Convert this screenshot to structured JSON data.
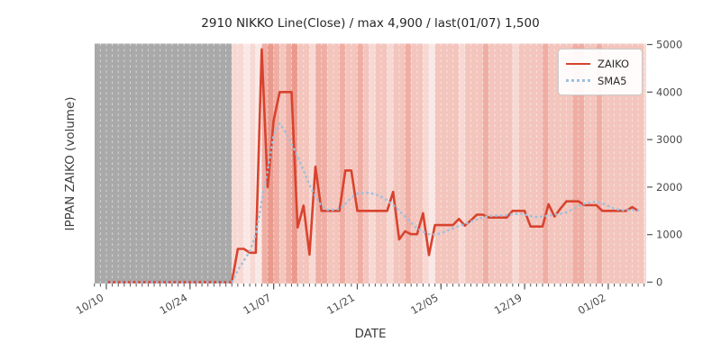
{
  "title": "2910 NIKKO Line(Close) / max 4,900 / last(01/07) 1,500",
  "axes": {
    "x_label": "DATE",
    "y_label": "IPPAN ZAIKO (volume)",
    "x_tick_labels": [
      "10/10",
      "10/24",
      "11/07",
      "11/21",
      "12/05",
      "12/19",
      "01/02"
    ],
    "y_tick_labels": [
      "0",
      "1000",
      "2000",
      "3000",
      "4000",
      "5000"
    ]
  },
  "legend": {
    "items": [
      {
        "label": "ZAIKO",
        "color": "#d8432e",
        "style": "solid"
      },
      {
        "label": "SMA5",
        "color": "#9fc0dd",
        "style": "dotted"
      }
    ]
  },
  "colors": {
    "zaiko_line": "#d8432e",
    "sma5_line": "#9fc0dd",
    "no_data_region": "#a9a9a9",
    "gridline": "rgba(255,255,255,0.55)",
    "tick": "#555555",
    "tick_label": "#4a4a4a",
    "band_levels": {
      "0": "#f9e9e6",
      "1": "#f7d9d4",
      "2": "#f3c5bd",
      "3": "#efaea4",
      "4": "#ea998d"
    }
  },
  "chart_data": {
    "type": "line",
    "title": "2910 NIKKO Line(Close) / max 4,900 / last(01/07) 1,500",
    "xlabel": "DATE",
    "ylabel": "IPPAN ZAIKO (volume)",
    "ylim": [
      0,
      5000
    ],
    "x_ticks": [
      "10/10",
      "10/24",
      "11/07",
      "11/21",
      "12/05",
      "12/19",
      "01/02"
    ],
    "y_ticks": [
      0,
      1000,
      2000,
      3000,
      4000,
      5000
    ],
    "max_value": 4900,
    "last_date": "01/07",
    "last_value": 1500,
    "legend_position": "upper right",
    "grid": "vertical-daily-dashed-white",
    "no_data_region": {
      "from": "10/08",
      "to": "10/31"
    },
    "series": [
      {
        "name": "ZAIKO",
        "points": [
          [
            "10/10",
            0
          ],
          [
            "10/11",
            0
          ],
          [
            "10/12",
            0
          ],
          [
            "10/13",
            0
          ],
          [
            "10/14",
            0
          ],
          [
            "10/15",
            0
          ],
          [
            "10/16",
            0
          ],
          [
            "10/17",
            0
          ],
          [
            "10/18",
            0
          ],
          [
            "10/19",
            0
          ],
          [
            "10/20",
            0
          ],
          [
            "10/21",
            0
          ],
          [
            "10/22",
            0
          ],
          [
            "10/23",
            0
          ],
          [
            "10/24",
            0
          ],
          [
            "10/25",
            0
          ],
          [
            "10/26",
            0
          ],
          [
            "10/27",
            0
          ],
          [
            "10/28",
            0
          ],
          [
            "10/29",
            0
          ],
          [
            "10/30",
            0
          ],
          [
            "10/31",
            0
          ],
          [
            "11/01",
            700
          ],
          [
            "11/02",
            700
          ],
          [
            "11/03",
            620
          ],
          [
            "11/04",
            620
          ],
          [
            "11/05",
            4900
          ],
          [
            "11/06",
            2000
          ],
          [
            "11/07",
            3400
          ],
          [
            "11/08",
            4000
          ],
          [
            "11/09",
            4000
          ],
          [
            "11/10",
            4000
          ],
          [
            "11/11",
            1150
          ],
          [
            "11/12",
            1610
          ],
          [
            "11/13",
            580
          ],
          [
            "11/14",
            2430
          ],
          [
            "11/15",
            1500
          ],
          [
            "11/16",
            1500
          ],
          [
            "11/17",
            1500
          ],
          [
            "11/18",
            1500
          ],
          [
            "11/19",
            2350
          ],
          [
            "11/20",
            2350
          ],
          [
            "11/21",
            1500
          ],
          [
            "11/22",
            1500
          ],
          [
            "11/23",
            1500
          ],
          [
            "11/24",
            1500
          ],
          [
            "11/25",
            1500
          ],
          [
            "11/26",
            1500
          ],
          [
            "11/27",
            1900
          ],
          [
            "11/28",
            900
          ],
          [
            "11/29",
            1070
          ],
          [
            "11/30",
            1010
          ],
          [
            "12/01",
            1010
          ],
          [
            "12/02",
            1450
          ],
          [
            "12/03",
            570
          ],
          [
            "12/04",
            1200
          ],
          [
            "12/05",
            1200
          ],
          [
            "12/06",
            1200
          ],
          [
            "12/07",
            1200
          ],
          [
            "12/08",
            1330
          ],
          [
            "12/09",
            1190
          ],
          [
            "12/10",
            1300
          ],
          [
            "12/11",
            1420
          ],
          [
            "12/12",
            1420
          ],
          [
            "12/13",
            1360
          ],
          [
            "12/14",
            1360
          ],
          [
            "12/15",
            1360
          ],
          [
            "12/16",
            1360
          ],
          [
            "12/17",
            1500
          ],
          [
            "12/18",
            1500
          ],
          [
            "12/19",
            1500
          ],
          [
            "12/20",
            1170
          ],
          [
            "12/21",
            1170
          ],
          [
            "12/22",
            1170
          ],
          [
            "12/23",
            1640
          ],
          [
            "12/24",
            1380
          ],
          [
            "12/25",
            1550
          ],
          [
            "12/26",
            1700
          ],
          [
            "12/27",
            1700
          ],
          [
            "12/28",
            1700
          ],
          [
            "12/29",
            1620
          ],
          [
            "12/30",
            1620
          ],
          [
            "12/31",
            1620
          ],
          [
            "01/01",
            1500
          ],
          [
            "01/02",
            1500
          ],
          [
            "01/03",
            1500
          ],
          [
            "01/04",
            1500
          ],
          [
            "01/05",
            1500
          ],
          [
            "01/06",
            1580
          ],
          [
            "01/07",
            1500
          ]
        ]
      },
      {
        "name": "SMA5",
        "points": [
          [
            "10/10",
            0
          ],
          [
            "10/31",
            0
          ],
          [
            "11/01",
            250
          ],
          [
            "11/02",
            450
          ],
          [
            "11/03",
            650
          ],
          [
            "11/04",
            1000
          ],
          [
            "11/05",
            1700
          ],
          [
            "11/06",
            2350
          ],
          [
            "11/07",
            3100
          ],
          [
            "11/08",
            3340
          ],
          [
            "11/09",
            3150
          ],
          [
            "11/10",
            2900
          ],
          [
            "11/11",
            2650
          ],
          [
            "11/12",
            2350
          ],
          [
            "11/13",
            2050
          ],
          [
            "11/14",
            1800
          ],
          [
            "11/15",
            1600
          ],
          [
            "11/16",
            1520
          ],
          [
            "11/17",
            1520
          ],
          [
            "11/18",
            1540
          ],
          [
            "11/19",
            1650
          ],
          [
            "11/20",
            1780
          ],
          [
            "11/21",
            1860
          ],
          [
            "11/22",
            1880
          ],
          [
            "11/23",
            1880
          ],
          [
            "11/24",
            1850
          ],
          [
            "11/25",
            1800
          ],
          [
            "11/26",
            1720
          ],
          [
            "11/27",
            1620
          ],
          [
            "11/28",
            1500
          ],
          [
            "11/29",
            1380
          ],
          [
            "11/30",
            1250
          ],
          [
            "12/01",
            1130
          ],
          [
            "12/02",
            1060
          ],
          [
            "12/03",
            1010
          ],
          [
            "12/04",
            1000
          ],
          [
            "12/05",
            1030
          ],
          [
            "12/06",
            1080
          ],
          [
            "12/07",
            1130
          ],
          [
            "12/08",
            1180
          ],
          [
            "12/09",
            1220
          ],
          [
            "12/10",
            1270
          ],
          [
            "12/11",
            1320
          ],
          [
            "12/12",
            1360
          ],
          [
            "12/13",
            1390
          ],
          [
            "12/14",
            1400
          ],
          [
            "12/15",
            1400
          ],
          [
            "12/16",
            1410
          ],
          [
            "12/17",
            1430
          ],
          [
            "12/18",
            1440
          ],
          [
            "12/19",
            1430
          ],
          [
            "12/20",
            1390
          ],
          [
            "12/21",
            1370
          ],
          [
            "12/22",
            1380
          ],
          [
            "12/23",
            1400
          ],
          [
            "12/24",
            1420
          ],
          [
            "12/25",
            1440
          ],
          [
            "12/26",
            1470
          ],
          [
            "12/27",
            1530
          ],
          [
            "12/28",
            1600
          ],
          [
            "12/29",
            1650
          ],
          [
            "12/30",
            1680
          ],
          [
            "12/31",
            1690
          ],
          [
            "01/01",
            1660
          ],
          [
            "01/02",
            1600
          ],
          [
            "01/03",
            1550
          ],
          [
            "01/04",
            1520
          ],
          [
            "01/05",
            1510
          ],
          [
            "01/06",
            1520
          ],
          [
            "01/07",
            1510
          ]
        ]
      }
    ],
    "background_bands": [
      {
        "from": "10/31",
        "to": "11/02",
        "level": 1
      },
      {
        "from": "11/02",
        "to": "11/03",
        "level": 0
      },
      {
        "from": "11/03",
        "to": "11/04",
        "level": 1
      },
      {
        "from": "11/04",
        "to": "11/05",
        "level": 0
      },
      {
        "from": "11/05",
        "to": "11/06",
        "level": 3
      },
      {
        "from": "11/06",
        "to": "11/07",
        "level": 4
      },
      {
        "from": "11/07",
        "to": "11/08",
        "level": 3
      },
      {
        "from": "11/08",
        "to": "11/09",
        "level": 2
      },
      {
        "from": "11/09",
        "to": "11/10",
        "level": 3
      },
      {
        "from": "11/10",
        "to": "11/11",
        "level": 4
      },
      {
        "from": "11/11",
        "to": "11/13",
        "level": 2
      },
      {
        "from": "11/13",
        "to": "11/14",
        "level": 1
      },
      {
        "from": "11/14",
        "to": "11/16",
        "level": 3
      },
      {
        "from": "11/16",
        "to": "11/18",
        "level": 2
      },
      {
        "from": "11/18",
        "to": "11/19",
        "level": 3
      },
      {
        "from": "11/19",
        "to": "11/21",
        "level": 2
      },
      {
        "from": "11/21",
        "to": "11/22",
        "level": 3
      },
      {
        "from": "11/22",
        "to": "11/23",
        "level": 2
      },
      {
        "from": "11/23",
        "to": "11/24",
        "level": 1
      },
      {
        "from": "11/24",
        "to": "11/26",
        "level": 2
      },
      {
        "from": "11/26",
        "to": "11/27",
        "level": 1
      },
      {
        "from": "11/27",
        "to": "11/29",
        "level": 2
      },
      {
        "from": "11/29",
        "to": "11/30",
        "level": 3
      },
      {
        "from": "11/30",
        "to": "12/02",
        "level": 2
      },
      {
        "from": "12/02",
        "to": "12/03",
        "level": 1
      },
      {
        "from": "12/03",
        "to": "12/04",
        "level": 0
      },
      {
        "from": "12/04",
        "to": "12/08",
        "level": 2
      },
      {
        "from": "12/08",
        "to": "12/09",
        "level": 1
      },
      {
        "from": "12/09",
        "to": "12/12",
        "level": 2
      },
      {
        "from": "12/12",
        "to": "12/13",
        "level": 3
      },
      {
        "from": "12/13",
        "to": "12/17",
        "level": 2
      },
      {
        "from": "12/17",
        "to": "12/18",
        "level": 1
      },
      {
        "from": "12/18",
        "to": "12/22",
        "level": 2
      },
      {
        "from": "12/22",
        "to": "12/23",
        "level": 3
      },
      {
        "from": "12/23",
        "to": "12/27",
        "level": 2
      },
      {
        "from": "12/27",
        "to": "12/29",
        "level": 3
      },
      {
        "from": "12/29",
        "to": "12/31",
        "level": 2
      },
      {
        "from": "12/31",
        "to": "01/01",
        "level": 3
      },
      {
        "from": "01/01",
        "to": "01/06",
        "level": 2
      },
      {
        "from": "01/06",
        "to": "01/08",
        "level": 2
      },
      {
        "from": "01/08",
        "to": "01/09",
        "level": 1
      }
    ]
  }
}
